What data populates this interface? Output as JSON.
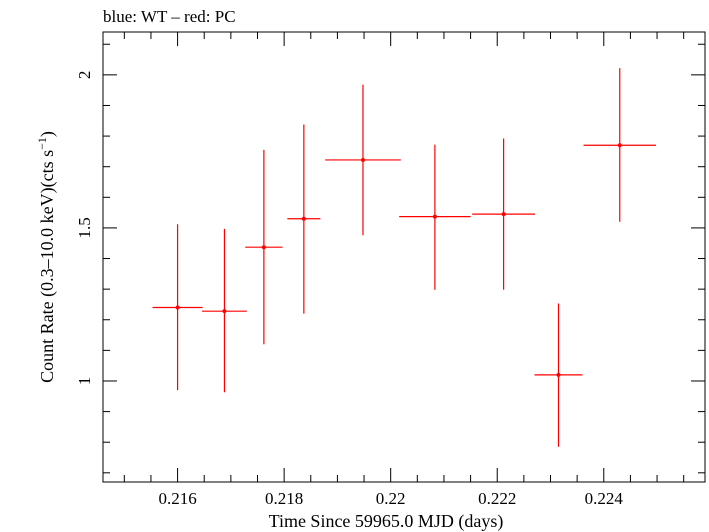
{
  "chart_data": {
    "type": "scatter",
    "title": "blue: WT – red: PC",
    "xlabel": "Time Since 59965.0 MJD (days)",
    "ylabel_main": "Count Rate (0.3–10.0 keV)(cts s",
    "ylabel_sup": "−1",
    "ylabel_end": ")",
    "xlim": [
      0.2146,
      0.2259
    ],
    "ylim": [
      0.67,
      2.14
    ],
    "x_major_ticks": [
      0.216,
      0.218,
      0.22,
      0.222,
      0.224
    ],
    "x_tick_labels": [
      "0.216",
      "0.218",
      "0.22",
      "0.222",
      "0.224"
    ],
    "x_minor_step": 0.0005,
    "y_major_ticks": [
      1,
      1.5,
      2
    ],
    "y_tick_labels": [
      "1",
      "1.5",
      "2"
    ],
    "y_minor_step": 0.1,
    "grid": false,
    "series": [
      {
        "name": "PC",
        "color": "#ff0000",
        "points": [
          {
            "x": 0.216,
            "xerr": 0.00047,
            "y": 1.24,
            "ylo": 0.97,
            "yhi": 1.512
          },
          {
            "x": 0.21688,
            "xerr": 0.00042,
            "y": 1.228,
            "ylo": 0.963,
            "yhi": 1.497
          },
          {
            "x": 0.21762,
            "xerr": 0.00035,
            "y": 1.437,
            "ylo": 1.12,
            "yhi": 1.755
          },
          {
            "x": 0.21837,
            "xerr": 0.00031,
            "y": 1.53,
            "ylo": 1.22,
            "yhi": 1.838
          },
          {
            "x": 0.21948,
            "xerr": 0.00071,
            "y": 1.722,
            "ylo": 1.476,
            "yhi": 1.968
          },
          {
            "x": 0.22083,
            "xerr": 0.00067,
            "y": 1.537,
            "ylo": 1.298,
            "yhi": 1.772
          },
          {
            "x": 0.22212,
            "xerr": 0.00059,
            "y": 1.545,
            "ylo": 1.298,
            "yhi": 1.792
          },
          {
            "x": 0.22315,
            "xerr": 0.00045,
            "y": 1.02,
            "ylo": 0.785,
            "yhi": 1.253
          },
          {
            "x": 0.2243,
            "xerr": 0.00068,
            "y": 1.77,
            "ylo": 1.52,
            "yhi": 2.022
          }
        ]
      }
    ]
  }
}
